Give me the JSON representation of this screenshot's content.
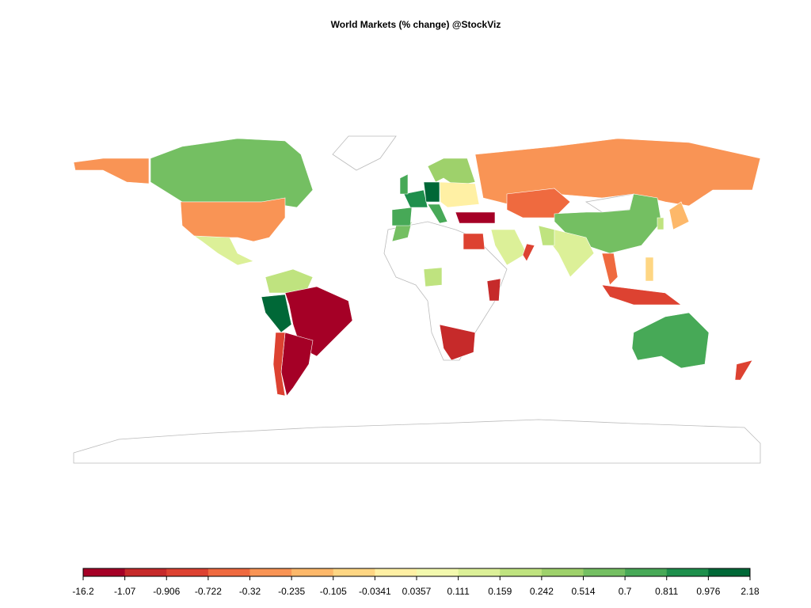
{
  "title": "World Markets (% change) @StockViz",
  "legend": {
    "breaks": [
      -16.2,
      -1.07,
      -0.906,
      -0.722,
      -0.32,
      -0.235,
      -0.105,
      -0.0341,
      0.0357,
      0.111,
      0.159,
      0.242,
      0.514,
      0.7,
      0.811,
      0.976,
      2.18
    ],
    "colors": [
      "#a50026",
      "#c62a2a",
      "#dd4231",
      "#ef6a3f",
      "#f99455",
      "#fdb86a",
      "#fed683",
      "#fff0a4",
      "#f3f9ae",
      "#dcf098",
      "#bfe37f",
      "#9ed16b",
      "#74bf62",
      "#47a957",
      "#1e8f4c",
      "#006837"
    ]
  }
}
